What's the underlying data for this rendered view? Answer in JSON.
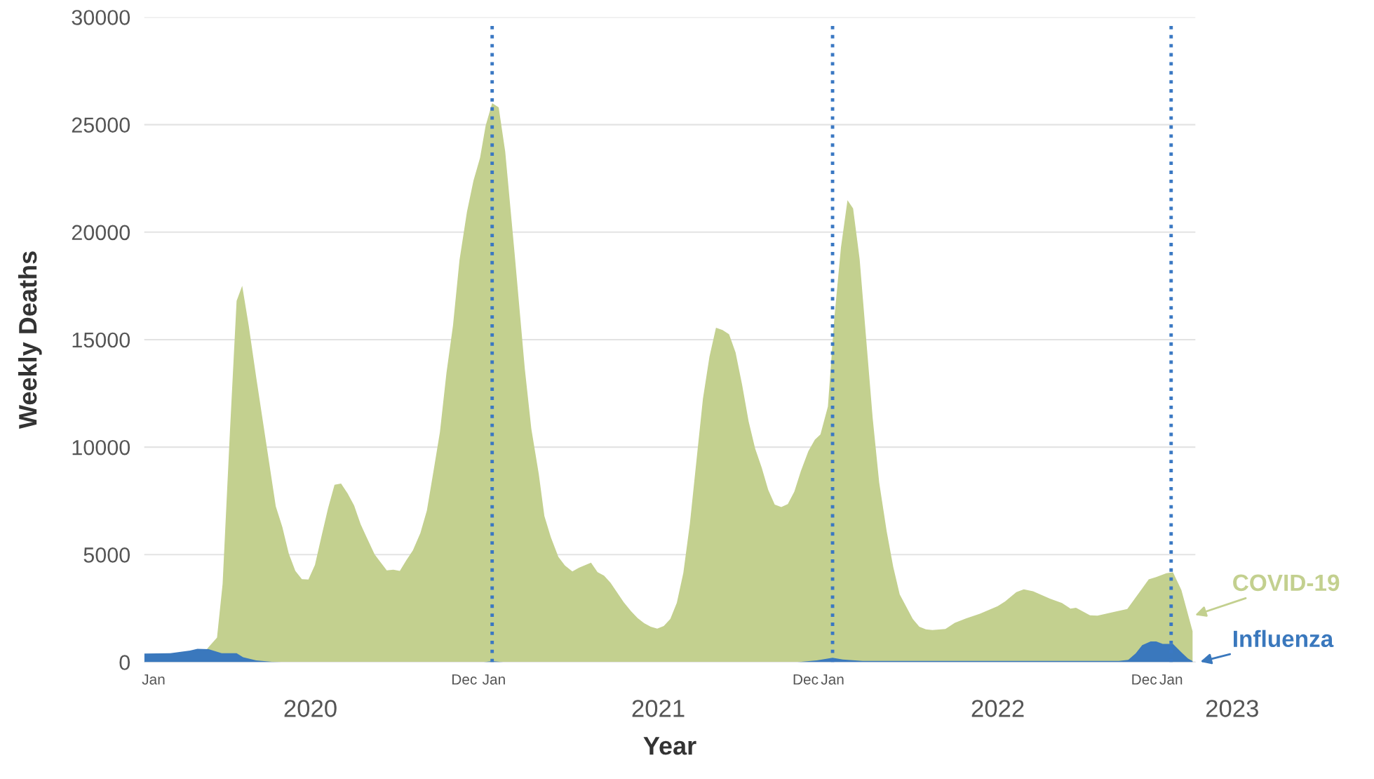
{
  "chart_data": {
    "type": "area",
    "xlabel": "Year",
    "ylabel": "Weekly Deaths",
    "xlim": [
      "2020-01-01",
      "2023-02-01"
    ],
    "ylim": [
      0,
      30000
    ],
    "yticks": [
      0,
      5000,
      10000,
      15000,
      20000,
      25000,
      30000
    ],
    "xticks": [
      {
        "value": "2020-01-11",
        "label": "Jan"
      },
      {
        "value": "2020-12-09",
        "label": "Dec"
      },
      {
        "value": "2021-01-10",
        "label": "Jan"
      },
      {
        "value": "2021-12-10",
        "label": "Dec"
      },
      {
        "value": "2022-01-08",
        "label": "Jan"
      },
      {
        "value": "2022-12-08",
        "label": "Dec"
      },
      {
        "value": "2023-01-06",
        "label": "Jan"
      }
    ],
    "annotations": [
      "2020",
      "2021",
      "2022",
      "2023"
    ],
    "grid": "y",
    "legend": false,
    "ref_lines": [
      {
        "axis": "x",
        "value": "2021-01-08",
        "color": "#3a78c3",
        "line_style": "dotted"
      },
      {
        "axis": "x",
        "value": "2022-01-08",
        "color": "#3a78c3",
        "line_style": "dotted"
      },
      {
        "axis": "x",
        "value": "2023-01-06",
        "color": "#3a78c3",
        "line_style": "dotted"
      }
    ],
    "series": [
      {
        "name": "COVID-19",
        "color": "#c3d08f",
        "x": [
          "2020-01-01",
          "2020-02-26",
          "2020-03-10",
          "2020-03-19",
          "2020-03-25",
          "2020-04-02",
          "2020-04-09",
          "2020-04-15",
          "2020-04-22",
          "2020-04-30",
          "2020-05-21",
          "2020-05-28",
          "2020-06-04",
          "2020-06-11",
          "2020-06-18",
          "2020-06-25",
          "2020-07-02",
          "2020-07-09",
          "2020-07-16",
          "2020-07-23",
          "2020-07-30",
          "2020-08-06",
          "2020-08-13",
          "2020-08-20",
          "2020-08-27",
          "2020-09-04",
          "2020-09-11",
          "2020-09-17",
          "2020-09-24",
          "2020-10-01",
          "2020-10-08",
          "2020-10-15",
          "2020-10-23",
          "2020-10-30",
          "2020-11-06",
          "2020-11-13",
          "2020-11-20",
          "2020-11-27",
          "2020-12-04",
          "2020-12-12",
          "2020-12-19",
          "2020-12-26",
          "2021-01-01",
          "2021-01-08",
          "2021-01-15",
          "2021-01-22",
          "2021-02-01",
          "2021-02-12",
          "2021-02-19",
          "2021-02-27",
          "2021-03-05",
          "2021-03-12",
          "2021-03-20",
          "2021-03-27",
          "2021-04-04",
          "2021-04-11",
          "2021-04-24",
          "2021-05-01",
          "2021-05-08",
          "2021-05-15",
          "2021-05-29",
          "2021-06-06",
          "2021-06-13",
          "2021-06-20",
          "2021-06-27",
          "2021-07-04",
          "2021-07-11",
          "2021-07-18",
          "2021-07-25",
          "2021-08-01",
          "2021-08-08",
          "2021-08-15",
          "2021-08-22",
          "2021-08-29",
          "2021-09-05",
          "2021-09-12",
          "2021-09-19",
          "2021-09-26",
          "2021-10-03",
          "2021-10-10",
          "2021-10-17",
          "2021-10-24",
          "2021-10-31",
          "2021-11-07",
          "2021-11-14",
          "2021-11-21",
          "2021-11-28",
          "2021-12-05",
          "2021-12-13",
          "2021-12-20",
          "2021-12-26",
          "2022-01-03",
          "2022-01-10",
          "2022-01-17",
          "2022-01-24",
          "2022-01-30",
          "2022-02-06",
          "2022-02-13",
          "2022-02-20",
          "2022-02-27",
          "2022-03-07",
          "2022-03-14",
          "2022-03-21",
          "2022-04-04",
          "2022-04-11",
          "2022-04-18",
          "2022-04-25",
          "2022-05-09",
          "2022-05-19",
          "2022-05-31",
          "2022-06-15",
          "2022-07-04",
          "2022-07-12",
          "2022-07-24",
          "2022-08-01",
          "2022-08-11",
          "2022-08-29",
          "2022-09-11",
          "2022-09-20",
          "2022-09-26",
          "2022-10-11",
          "2022-10-19",
          "2022-11-08",
          "2022-11-20",
          "2022-12-02",
          "2022-12-13",
          "2022-12-21",
          "2023-01-01",
          "2023-01-08",
          "2023-01-17",
          "2023-01-29"
        ],
        "values": [
          0,
          0,
          700,
          1140,
          3640,
          10850,
          16800,
          17500,
          15650,
          13250,
          7250,
          6290,
          5040,
          4240,
          3860,
          3840,
          4520,
          5850,
          7150,
          8250,
          8310,
          7850,
          7290,
          6410,
          5750,
          5010,
          4610,
          4270,
          4300,
          4240,
          4740,
          5200,
          6000,
          7050,
          8850,
          10700,
          13450,
          15650,
          18700,
          20950,
          22400,
          23450,
          24950,
          26000,
          25800,
          23750,
          19050,
          13650,
          10850,
          8750,
          6800,
          5800,
          4900,
          4500,
          4220,
          4390,
          4630,
          4190,
          4020,
          3690,
          2790,
          2370,
          2050,
          1810,
          1650,
          1560,
          1680,
          2010,
          2760,
          4150,
          6440,
          9350,
          12250,
          14210,
          15550,
          15450,
          15250,
          14400,
          12900,
          11200,
          9930,
          9050,
          8010,
          7330,
          7210,
          7350,
          7930,
          8890,
          9810,
          10350,
          10590,
          11890,
          16050,
          19290,
          21490,
          21100,
          18750,
          15050,
          11350,
          8350,
          6090,
          4440,
          3150,
          2010,
          1650,
          1530,
          1490,
          1540,
          1830,
          2030,
          2250,
          2600,
          2820,
          3260,
          3390,
          3300,
          2950,
          2750,
          2490,
          2530,
          2180,
          2160,
          2360,
          2470,
          3190,
          3850,
          3960,
          4140,
          4180,
          3350,
          1440
        ]
      },
      {
        "name": "Influenza",
        "color": "#3a78bd",
        "x": [
          "2020-01-01",
          "2020-01-29",
          "2020-02-19",
          "2020-02-27",
          "2020-03-10",
          "2020-03-24",
          "2020-04-09",
          "2020-04-16",
          "2020-04-30",
          "2020-05-17",
          "2020-05-27",
          "2020-12-30",
          "2021-01-08",
          "2021-01-20",
          "2021-12-01",
          "2021-12-22",
          "2022-01-08",
          "2022-01-19",
          "2022-02-09",
          "2022-04-20",
          "2022-10-19",
          "2022-11-11",
          "2022-11-21",
          "2022-11-29",
          "2022-12-06",
          "2022-12-15",
          "2022-12-21",
          "2022-12-28",
          "2023-01-08",
          "2023-01-17",
          "2023-01-24",
          "2023-01-29"
        ],
        "values": [
          400,
          420,
          540,
          620,
          600,
          420,
          420,
          230,
          80,
          20,
          0,
          0,
          50,
          0,
          0,
          80,
          200,
          120,
          60,
          60,
          60,
          60,
          110,
          410,
          790,
          960,
          960,
          850,
          850,
          460,
          170,
          50
        ]
      }
    ]
  }
}
